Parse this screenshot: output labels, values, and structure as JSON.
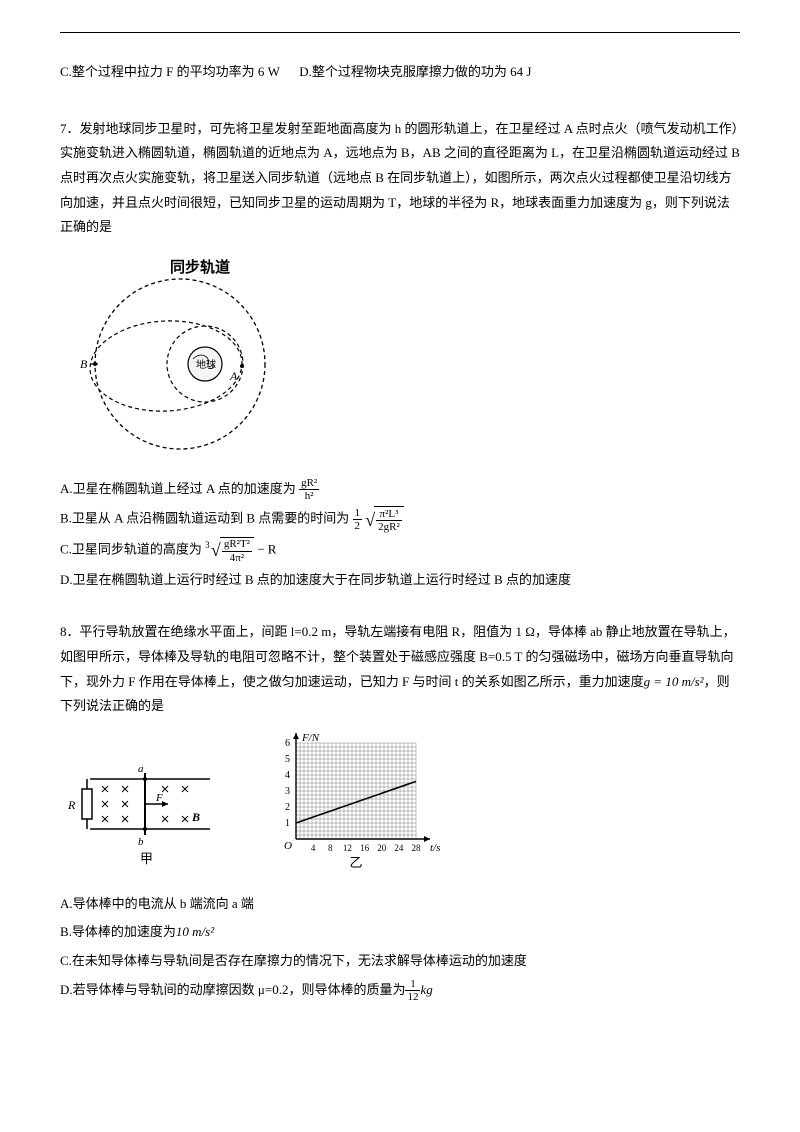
{
  "q6_options": {
    "c": "C.整个过程中拉力 F 的平均功率为 6 W",
    "d": "D.整个过程物块克服摩擦力做的功为 64 J"
  },
  "q7": {
    "stem": "7．发射地球同步卫星时，可先将卫星发射至距地面高度为 h 的圆形轨道上，在卫星经过 A 点时点火（喷气发动机工作）实施变轨进入椭圆轨道，椭圆轨道的近地点为 A，远地点为 B，AB 之间的直径距离为 L，在卫星沿椭圆轨道运动经过 B 点时再次点火实施变轨，将卫星送入同步轨道（远地点 B 在同步轨道上），如图所示，两次点火过程都使卫星沿切线方向加速，并且点火时间很短，已知同步卫星的运动周期为 T，地球的半径为 R，地球表面重力加速度为 g，则下列说法正确的是",
    "orbit_label": "同步轨道",
    "opt_a_prefix": "A.卫星在椭圆轨道上经过 A 点的加速度为",
    "opt_a_frac_num": "gR²",
    "opt_a_frac_den": "h²",
    "opt_b_prefix": "B.卫星从 A 点沿椭圆轨道运动到 B 点需要的时间为",
    "opt_b_coef_num": "1",
    "opt_b_coef_den": "2",
    "opt_b_sqrt_num": "π²L³",
    "opt_b_sqrt_den": "2gR²",
    "opt_c_prefix": "C.卫星同步轨道的高度为",
    "opt_c_root_idx": "3",
    "opt_c_sqrt_num": "gR²T²",
    "opt_c_sqrt_den": "4π²",
    "opt_c_suffix": " − R",
    "opt_d": "D.卫星在椭圆轨道上运行时经过 B 点的加速度大于在同步轨道上运行时经过 B 点的加速度"
  },
  "q8": {
    "stem_1": "8．平行导轨放置在绝缘水平面上，间距 l=0.2 m，导轨左端接有电阻 R，阻值为 1 Ω，导体棒 ab 静止地放置在导轨上，如图甲所示，导体棒及导轨的电阻可忽略不计，整个装置处于磁感应强度 B=0.5 T 的匀强磁场中，磁场方向垂直导轨向下，现外力 F 作用在导体棒上，使之做匀加速运动，已知力 F 与时间 t 的关系如图乙所示，重力加速度",
    "g_expr": "g = 10 m/s²",
    "stem_2": "，则下列说法正确的是",
    "diagram_left_label": "甲",
    "diagram_right_label": "乙",
    "graph": {
      "y_label": "F/N",
      "y_ticks": [
        1,
        2,
        3,
        4,
        5,
        6
      ],
      "x_label": "t/s",
      "x_ticks": [
        4,
        8,
        12,
        16,
        20,
        24,
        28
      ],
      "line_y_intercept": 1,
      "line_x_max": 28,
      "line_y_at_xmax": 3.6,
      "bg_color": "#ffffff",
      "grid_color": "#606060",
      "axis_color": "#000000",
      "line_color": "#000000"
    },
    "circuit": {
      "labels": {
        "R": "R",
        "a": "a",
        "b": "b",
        "F": "F",
        "B": "B"
      }
    },
    "opt_a": "A.导体棒中的电流从 b 端流向 a 端",
    "opt_b_prefix": "B.导体棒的加速度为",
    "opt_b_val": "10 m/s²",
    "opt_c": "C.在未知导体棒与导轨间是否存在摩擦力的情况下，无法求解导体棒运动的加速度",
    "opt_d_prefix": "D.若导体棒与导轨间的动摩擦因数 μ=0.2，则导体棒的质量为",
    "opt_d_frac_num": "1",
    "opt_d_frac_den": "12",
    "opt_d_suffix": "kg"
  }
}
